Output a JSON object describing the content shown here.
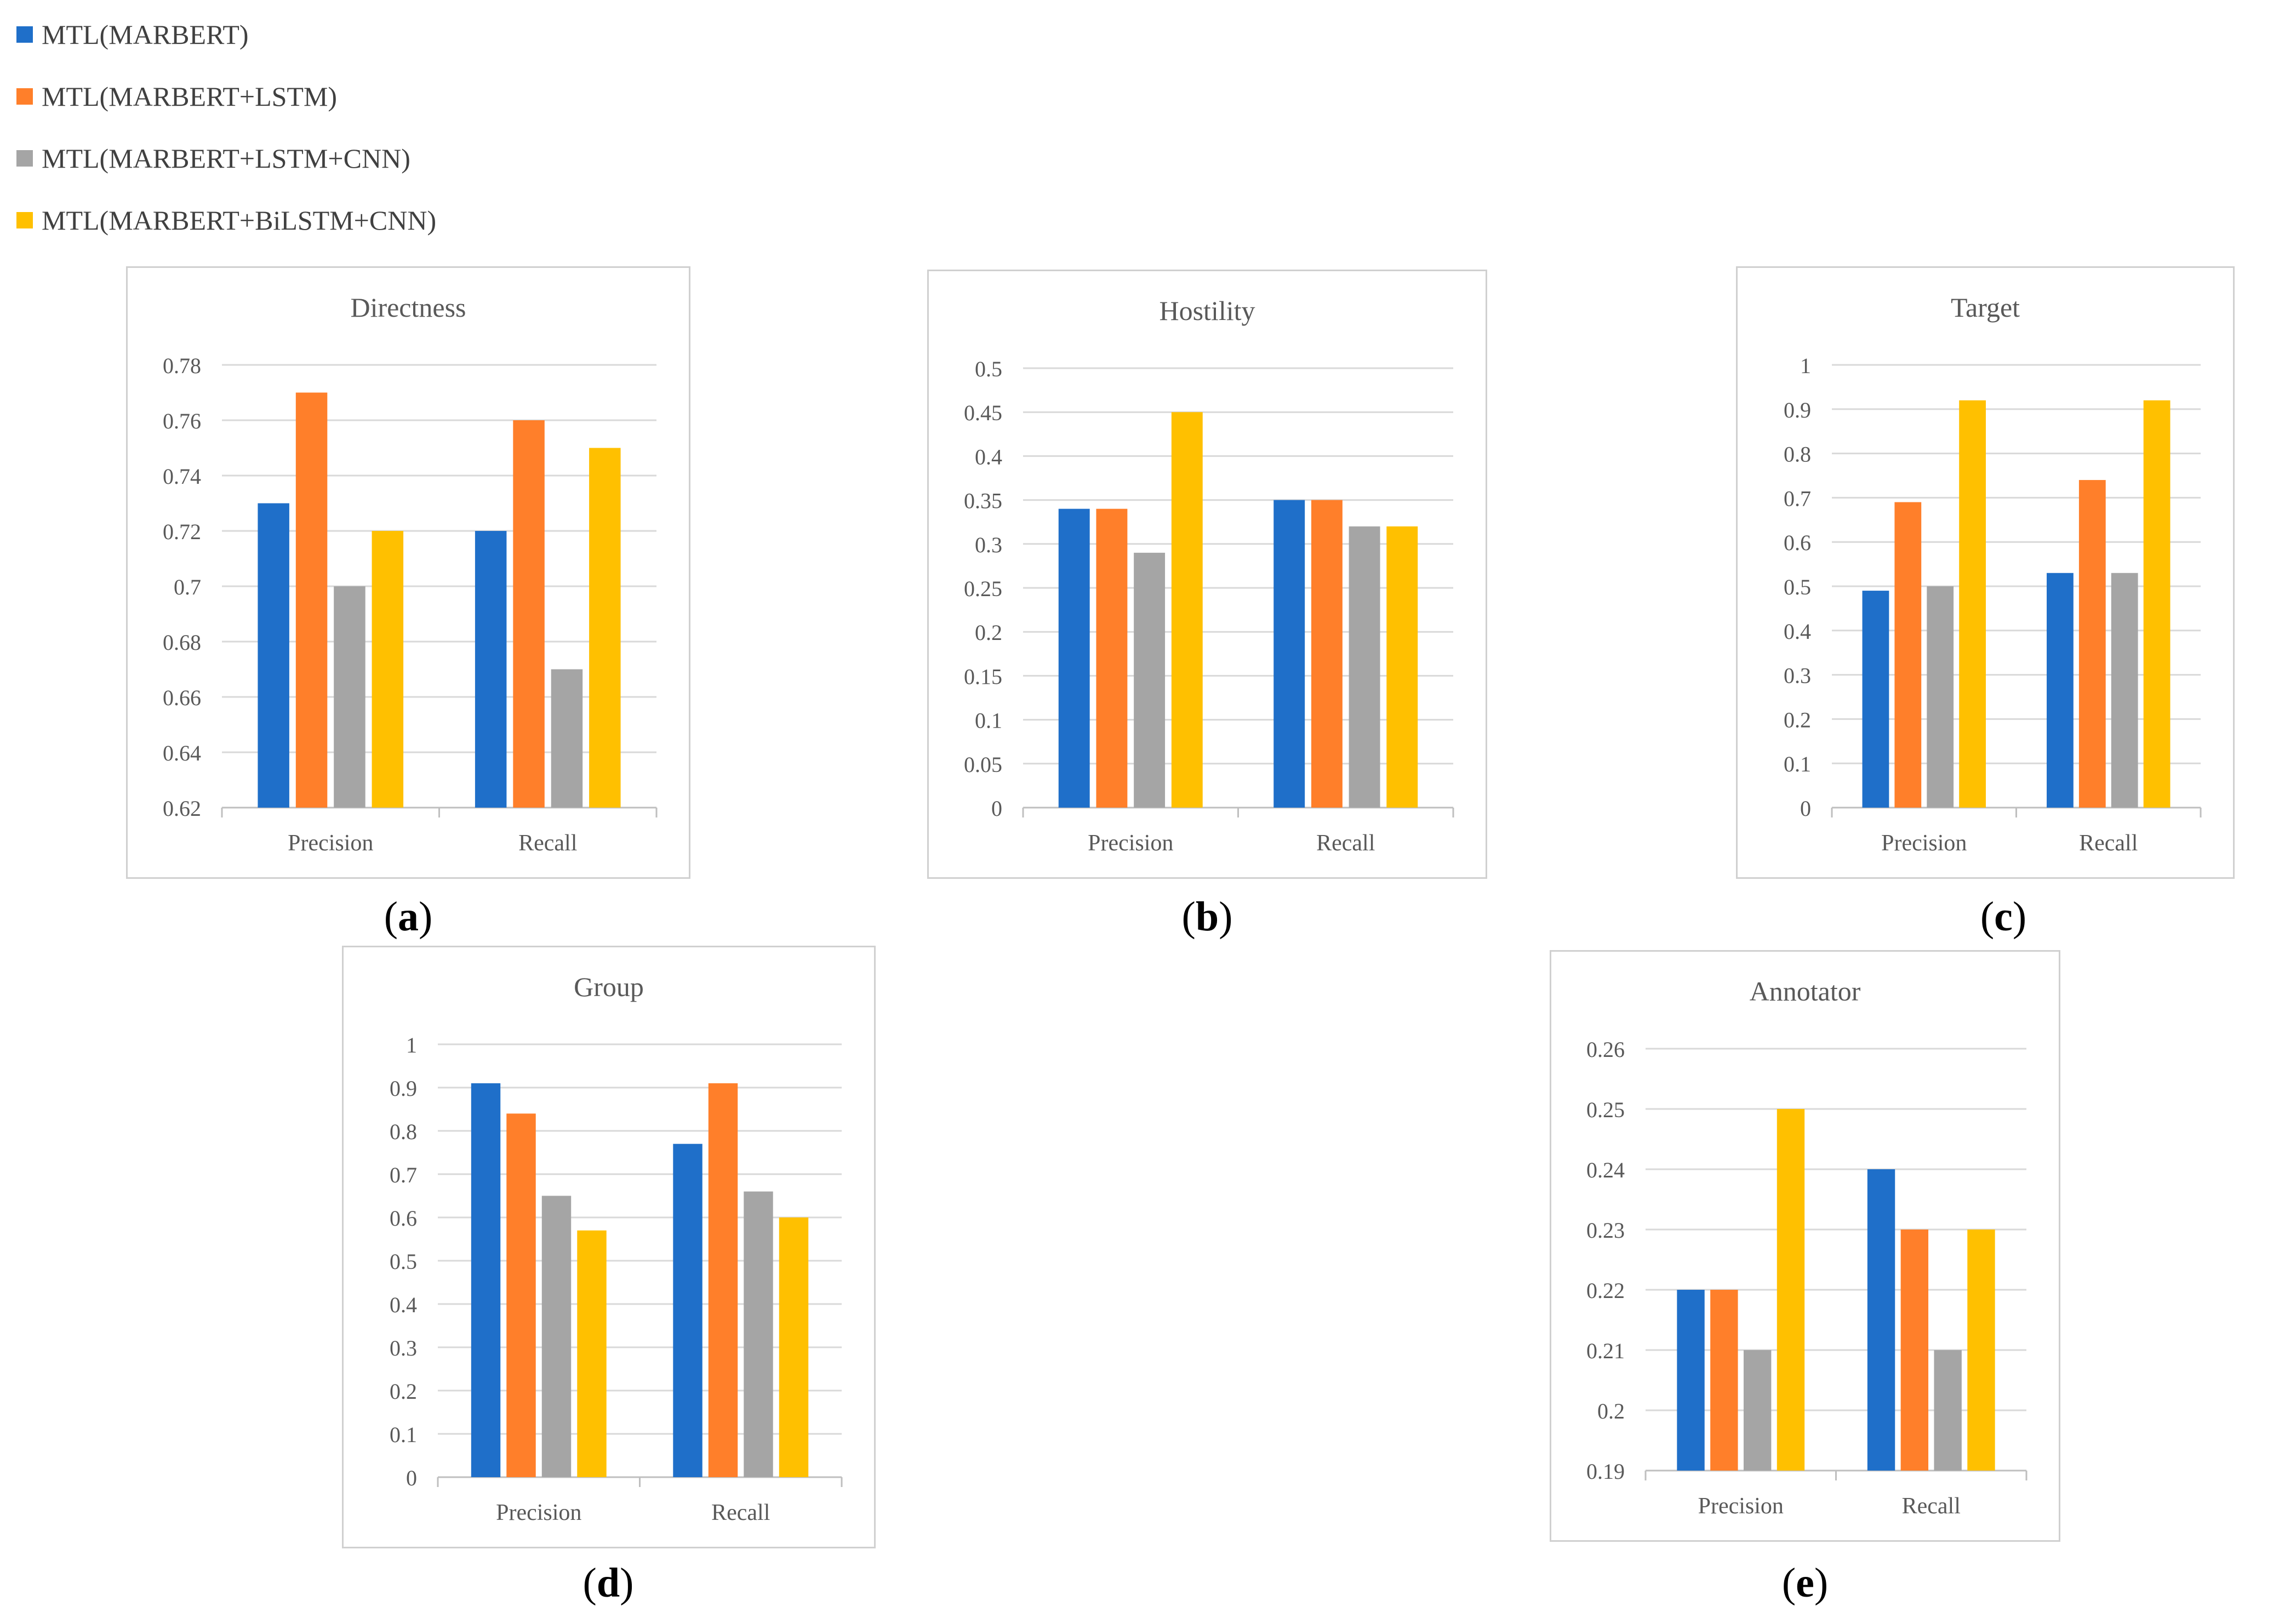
{
  "colors": {
    "series": [
      "#1f6fc9",
      "#ff7f2a",
      "#a5a5a5",
      "#ffc000"
    ],
    "grid": "#d9d9d9",
    "axis": "#bfbfbf",
    "frame": "#d0d0d0",
    "text": "#595959"
  },
  "legend": [
    "MTL(MARBERT)",
    "MTL(MARBERT+LSTM)",
    "MTL(MARBERT+LSTM+CNN)",
    "MTL(MARBERT+BiLSTM+CNN)"
  ],
  "chart_data": [
    {
      "type": "bar",
      "title": "Directness",
      "caption": "a",
      "categories": [
        "Precision",
        "Recall"
      ],
      "ylim": [
        0.62,
        0.78
      ],
      "ticks": [
        "0.62",
        "0.64",
        "0.66",
        "0.68",
        "0.7",
        "0.72",
        "0.74",
        "0.76",
        "0.78"
      ],
      "series": [
        {
          "name": "MTL(MARBERT)",
          "values": [
            0.73,
            0.72
          ]
        },
        {
          "name": "MTL(MARBERT+LSTM)",
          "values": [
            0.77,
            0.76
          ]
        },
        {
          "name": "MTL(MARBERT+LSTM+CNN)",
          "values": [
            0.7,
            0.67
          ]
        },
        {
          "name": "MTL(MARBERT+BiLSTM+CNN)",
          "values": [
            0.72,
            0.75
          ]
        }
      ]
    },
    {
      "type": "bar",
      "title": "Hostility",
      "caption": "b",
      "categories": [
        "Precision",
        "Recall"
      ],
      "ylim": [
        0,
        0.5
      ],
      "ticks": [
        "0",
        "0.05",
        "0.1",
        "0.15",
        "0.2",
        "0.25",
        "0.3",
        "0.35",
        "0.4",
        "0.45",
        "0.5"
      ],
      "series": [
        {
          "name": "MTL(MARBERT)",
          "values": [
            0.34,
            0.35
          ]
        },
        {
          "name": "MTL(MARBERT+LSTM)",
          "values": [
            0.34,
            0.35
          ]
        },
        {
          "name": "MTL(MARBERT+LSTM+CNN)",
          "values": [
            0.29,
            0.32
          ]
        },
        {
          "name": "MTL(MARBERT+BiLSTM+CNN)",
          "values": [
            0.45,
            0.32
          ]
        }
      ]
    },
    {
      "type": "bar",
      "title": "Target",
      "caption": "c",
      "categories": [
        "Precision",
        "Recall"
      ],
      "ylim": [
        0,
        1
      ],
      "ticks": [
        "0",
        "0.1",
        "0.2",
        "0.3",
        "0.4",
        "0.5",
        "0.6",
        "0.7",
        "0.8",
        "0.9",
        "1"
      ],
      "series": [
        {
          "name": "MTL(MARBERT)",
          "values": [
            0.49,
            0.53
          ]
        },
        {
          "name": "MTL(MARBERT+LSTM)",
          "values": [
            0.69,
            0.74
          ]
        },
        {
          "name": "MTL(MARBERT+LSTM+CNN)",
          "values": [
            0.5,
            0.53
          ]
        },
        {
          "name": "MTL(MARBERT+BiLSTM+CNN)",
          "values": [
            0.92,
            0.92
          ]
        }
      ]
    },
    {
      "type": "bar",
      "title": "Group",
      "caption": "d",
      "categories": [
        "Precision",
        "Recall"
      ],
      "ylim": [
        0,
        1
      ],
      "ticks": [
        "0",
        "0.1",
        "0.2",
        "0.3",
        "0.4",
        "0.5",
        "0.6",
        "0.7",
        "0.8",
        "0.9",
        "1"
      ],
      "series": [
        {
          "name": "MTL(MARBERT)",
          "values": [
            0.91,
            0.77
          ]
        },
        {
          "name": "MTL(MARBERT+LSTM)",
          "values": [
            0.84,
            0.91
          ]
        },
        {
          "name": "MTL(MARBERT+LSTM+CNN)",
          "values": [
            0.65,
            0.66
          ]
        },
        {
          "name": "MTL(MARBERT+BiLSTM+CNN)",
          "values": [
            0.57,
            0.6
          ]
        }
      ]
    },
    {
      "type": "bar",
      "title": "Annotator",
      "caption": "e",
      "categories": [
        "Precision",
        "Recall"
      ],
      "ylim": [
        0.19,
        0.26
      ],
      "ticks": [
        "0.19",
        "0.2",
        "0.21",
        "0.22",
        "0.23",
        "0.24",
        "0.25",
        "0.26"
      ],
      "series": [
        {
          "name": "MTL(MARBERT)",
          "values": [
            0.22,
            0.24
          ]
        },
        {
          "name": "MTL(MARBERT+LSTM)",
          "values": [
            0.22,
            0.23
          ]
        },
        {
          "name": "MTL(MARBERT+LSTM+CNN)",
          "values": [
            0.21,
            0.21
          ]
        },
        {
          "name": "MTL(MARBERT+BiLSTM+CNN)",
          "values": [
            0.25,
            0.23
          ]
        }
      ]
    }
  ]
}
